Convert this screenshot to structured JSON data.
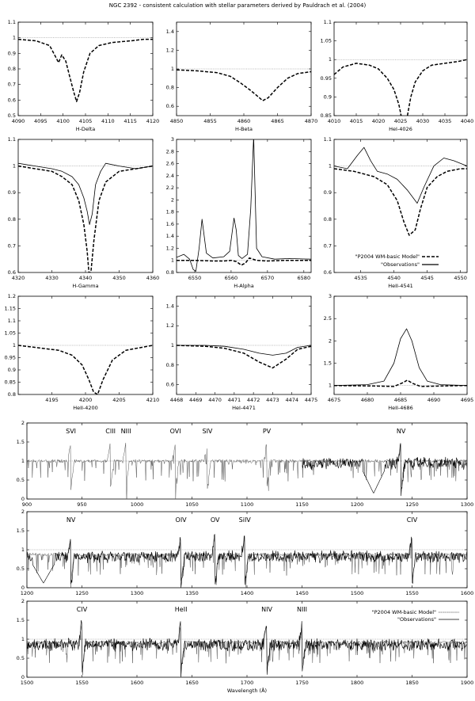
{
  "title": "NGC 2392 - consistent calculation with stellar parameters derived by Pauldrach et al. (2004)",
  "legend_model": "\"P2004 WM-basic Model\"",
  "legend_obs": "\"Observations\"",
  "xlabel_bottom": "Wavelength (Å)",
  "chart_data": [
    {
      "type": "line",
      "xlabel": "H-Delta",
      "xlim": [
        4090,
        4120
      ],
      "ylim": [
        0.5,
        1.1
      ],
      "xticks": [
        4090,
        4095,
        4100,
        4105,
        4110,
        4115,
        4120
      ],
      "yticks": [
        0.5,
        0.6,
        0.7,
        0.8,
        0.9,
        1,
        1.1
      ],
      "series": [
        {
          "name": "\"P2004 WM-basic Model\"",
          "style": "dashed",
          "x": [
            4090,
            4094,
            4097,
            4098.3,
            4099,
            4099.7,
            4100.6,
            4101.4,
            4102.3,
            4103,
            4103.7,
            4104.6,
            4106,
            4108,
            4111,
            4115,
            4118,
            4120
          ],
          "y": [
            0.99,
            0.98,
            0.95,
            0.88,
            0.84,
            0.89,
            0.85,
            0.76,
            0.66,
            0.59,
            0.65,
            0.78,
            0.9,
            0.95,
            0.97,
            0.98,
            0.99,
            0.99
          ]
        }
      ]
    },
    {
      "type": "line",
      "xlabel": "H-Beta",
      "xlim": [
        4850,
        4870
      ],
      "ylim": [
        0.5,
        1.5
      ],
      "xticks": [
        4850,
        4855,
        4860,
        4865,
        4870
      ],
      "yticks": [
        0.6,
        0.8,
        1,
        1.2,
        1.4
      ],
      "series": [
        {
          "name": "\"P2004 WM-basic Model\"",
          "style": "dashed",
          "x": [
            4850,
            4853,
            4856,
            4858,
            4859.5,
            4861,
            4862,
            4862.8,
            4863.6,
            4865,
            4866.5,
            4868,
            4870
          ],
          "y": [
            0.99,
            0.98,
            0.96,
            0.92,
            0.85,
            0.77,
            0.71,
            0.66,
            0.69,
            0.8,
            0.9,
            0.95,
            0.97
          ]
        }
      ]
    },
    {
      "type": "line",
      "xlabel": "HeI-4026",
      "xlim": [
        4010,
        4040
      ],
      "ylim": [
        0.85,
        1.1
      ],
      "xticks": [
        4010,
        4015,
        4020,
        4025,
        4030,
        4035,
        4040
      ],
      "yticks": [
        0.85,
        0.9,
        0.95,
        1,
        1.05,
        1.1
      ],
      "series": [
        {
          "name": "\"P2004 WM-basic Model\"",
          "style": "dashed",
          "x": [
            4010,
            4012,
            4015,
            4018,
            4020,
            4022,
            4023.5,
            4024.6,
            4025.3,
            4026.4,
            4027.3,
            4028.3,
            4030,
            4032,
            4035,
            4038,
            4040
          ],
          "y": [
            0.96,
            0.98,
            0.99,
            0.985,
            0.975,
            0.95,
            0.92,
            0.88,
            0.84,
            0.84,
            0.9,
            0.94,
            0.97,
            0.985,
            0.99,
            0.995,
            1.0
          ]
        }
      ]
    },
    {
      "type": "line",
      "xlabel": "H-Gamma",
      "xlim": [
        4320,
        4360
      ],
      "ylim": [
        0.6,
        1.1
      ],
      "xticks": [
        4320,
        4330,
        4340,
        4350,
        4360
      ],
      "yticks": [
        0.6,
        0.7,
        0.8,
        0.9,
        1,
        1.1
      ],
      "series": [
        {
          "name": "\"P2004 WM-basic Model\"",
          "style": "dashed",
          "x": [
            4320,
            4325,
            4330,
            4333,
            4336,
            4338,
            4339.5,
            4340.5,
            4341,
            4341.6,
            4342.5,
            4344,
            4346,
            4350,
            4355,
            4360
          ],
          "y": [
            1.0,
            0.99,
            0.98,
            0.96,
            0.93,
            0.87,
            0.78,
            0.68,
            0.6,
            0.6,
            0.72,
            0.87,
            0.94,
            0.98,
            0.99,
            1.0
          ]
        },
        {
          "name": "\"Observations\"",
          "style": "solid",
          "x": [
            4320,
            4325,
            4330,
            4333,
            4336,
            4338,
            4339.5,
            4340.5,
            4341.2,
            4342,
            4343,
            4344.5,
            4346,
            4350,
            4355,
            4360
          ],
          "y": [
            1.01,
            1.0,
            0.99,
            0.98,
            0.96,
            0.93,
            0.88,
            0.83,
            0.78,
            0.82,
            0.93,
            0.98,
            1.01,
            1.0,
            0.99,
            1.0
          ]
        }
      ]
    },
    {
      "type": "line",
      "xlabel": "H-Alpha",
      "xlim": [
        6545,
        6582
      ],
      "ylim": [
        0.8,
        3
      ],
      "xticks": [
        6550,
        6560,
        6570,
        6580
      ],
      "yticks": [
        0.8,
        1,
        1.2,
        1.4,
        1.6,
        1.8,
        2,
        2.2,
        2.4,
        2.6,
        2.8,
        3
      ],
      "series": [
        {
          "name": "\"P2004 WM-basic Model\"",
          "style": "dashed",
          "x": [
            6545,
            6550,
            6555,
            6558,
            6560,
            6561.5,
            6562.8,
            6564,
            6565,
            6567,
            6570,
            6575,
            6582
          ],
          "y": [
            1.0,
            1.0,
            0.99,
            0.99,
            1.0,
            0.98,
            0.92,
            0.96,
            1.04,
            1.0,
            0.99,
            1.0,
            1.0
          ]
        },
        {
          "name": "\"Observations\"",
          "style": "solid",
          "x": [
            6545,
            6547,
            6548.6,
            6549.6,
            6550.3,
            6551.2,
            6552,
            6553.2,
            6555,
            6558,
            6559.6,
            6560.8,
            6561.4,
            6562,
            6563,
            6564.5,
            6565.4,
            6566.2,
            6567,
            6568.5,
            6572,
            6576,
            6582
          ],
          "y": [
            1.05,
            1.1,
            1.02,
            0.85,
            0.82,
            1.2,
            1.68,
            1.12,
            1.04,
            1.06,
            1.15,
            1.7,
            1.5,
            1.08,
            1.03,
            1.1,
            1.85,
            3.05,
            1.2,
            1.06,
            1.02,
            1.03,
            1.02
          ]
        }
      ]
    },
    {
      "type": "line",
      "xlabel": "HeII-4541",
      "xlim": [
        4531,
        4551
      ],
      "ylim": [
        0.6,
        1.1
      ],
      "xticks": [
        4535,
        4540,
        4545,
        4550
      ],
      "yticks": [
        0.6,
        0.7,
        0.8,
        0.9,
        1,
        1.1
      ],
      "series": [
        {
          "name": "\"P2004 WM-basic Model\"",
          "style": "dashed",
          "x": [
            4531,
            4534,
            4537,
            4539,
            4540.5,
            4541.5,
            4542.3,
            4543.2,
            4544,
            4545,
            4546.5,
            4548,
            4550,
            4551
          ],
          "y": [
            0.99,
            0.98,
            0.96,
            0.93,
            0.87,
            0.79,
            0.74,
            0.76,
            0.84,
            0.92,
            0.96,
            0.98,
            0.99,
            0.99
          ]
        },
        {
          "name": "\"Observations\"",
          "style": "solid",
          "x": [
            4531,
            4533,
            4534.5,
            4535.5,
            4536.5,
            4537.5,
            4539,
            4540.5,
            4542,
            4543.5,
            4544.5,
            4546,
            4547.5,
            4549,
            4550,
            4551
          ],
          "y": [
            1.0,
            0.99,
            1.04,
            1.07,
            1.02,
            0.98,
            0.97,
            0.95,
            0.91,
            0.86,
            0.92,
            1.0,
            1.03,
            1.02,
            1.01,
            1.0
          ]
        }
      ]
    },
    {
      "type": "line",
      "xlabel": "HeII-4200",
      "xlim": [
        4190,
        4210
      ],
      "ylim": [
        0.8,
        1.2
      ],
      "xticks": [
        4195,
        4200,
        4205,
        4210
      ],
      "yticks": [
        0.8,
        0.85,
        0.9,
        0.95,
        1,
        1.05,
        1.1,
        1.15,
        1.2
      ],
      "series": [
        {
          "name": "\"P2004 WM-basic Model\"",
          "style": "dashed",
          "x": [
            4190,
            4193,
            4196,
            4198,
            4199.5,
            4200.5,
            4201.2,
            4201.8,
            4202.6,
            4204,
            4206,
            4208,
            4210
          ],
          "y": [
            1.0,
            0.99,
            0.98,
            0.96,
            0.92,
            0.86,
            0.81,
            0.8,
            0.86,
            0.94,
            0.98,
            0.99,
            1.0
          ]
        }
      ]
    },
    {
      "type": "line",
      "xlabel": "HeI-4471",
      "xlim": [
        4468,
        4475
      ],
      "ylim": [
        0.5,
        1.5
      ],
      "xticks": [
        4468,
        4469,
        4470,
        4471,
        4472,
        4473,
        4474,
        4475
      ],
      "yticks": [
        0.6,
        0.8,
        1,
        1.2,
        1.4
      ],
      "series": [
        {
          "name": "\"P2004 WM-basic Model\"",
          "style": "dashed",
          "x": [
            4468,
            4469.5,
            4470.5,
            4471.5,
            4472.3,
            4473,
            4473.7,
            4474.3,
            4475
          ],
          "y": [
            1.0,
            0.99,
            0.97,
            0.92,
            0.83,
            0.77,
            0.86,
            0.96,
            0.99
          ]
        },
        {
          "name": "\"Observations\"",
          "style": "solid",
          "x": [
            4468,
            4469.5,
            4470.5,
            4471.5,
            4472.3,
            4473,
            4473.7,
            4474.3,
            4475
          ],
          "y": [
            1.0,
            1.0,
            0.99,
            0.96,
            0.92,
            0.9,
            0.92,
            0.98,
            1.0
          ]
        }
      ]
    },
    {
      "type": "line",
      "xlabel": "HeII-4686",
      "xlim": [
        4675,
        4695
      ],
      "ylim": [
        0.8,
        3
      ],
      "xticks": [
        4675,
        4680,
        4685,
        4690,
        4695
      ],
      "yticks": [
        1,
        1.5,
        2,
        2.5,
        3
      ],
      "series": [
        {
          "name": "\"P2004 WM-basic Model\"",
          "style": "dashed",
          "x": [
            4675,
            4681,
            4684,
            4685.3,
            4686,
            4686.8,
            4688,
            4691,
            4695
          ],
          "y": [
            1.0,
            0.99,
            0.98,
            1.06,
            1.12,
            1.05,
            0.98,
            0.99,
            1.0
          ]
        },
        {
          "name": "\"Observations\"",
          "style": "solid",
          "x": [
            4675,
            4680,
            4682.5,
            4684,
            4685,
            4685.9,
            4686.7,
            4687.8,
            4689,
            4691,
            4695
          ],
          "y": [
            1.0,
            1.02,
            1.1,
            1.5,
            2.05,
            2.27,
            2.0,
            1.4,
            1.1,
            1.02,
            1.0
          ]
        }
      ]
    },
    {
      "type": "line",
      "xlabel": "",
      "xlim": [
        900,
        1300
      ],
      "ylim": [
        0,
        2
      ],
      "xticks": [
        900,
        950,
        1000,
        1050,
        1100,
        1150,
        1200,
        1250,
        1300
      ],
      "yticks": [
        0,
        0.5,
        1,
        1.5,
        2
      ],
      "annotations": [
        {
          "text": "SVI",
          "x": 940
        },
        {
          "text": "CIII",
          "x": 976
        },
        {
          "text": "NIII",
          "x": 990
        },
        {
          "text": "OVI",
          "x": 1035
        },
        {
          "text": "SIV",
          "x": 1064
        },
        {
          "text": "PV",
          "x": 1118
        },
        {
          "text": "NV",
          "x": 1240
        }
      ],
      "continuum": 1.0,
      "obs_start": 1150,
      "seed": 11
    },
    {
      "type": "line",
      "xlabel": "",
      "xlim": [
        1200,
        1600
      ],
      "ylim": [
        0,
        2
      ],
      "xticks": [
        1200,
        1250,
        1300,
        1350,
        1400,
        1450,
        1500,
        1550,
        1600
      ],
      "yticks": [
        0,
        0.5,
        1,
        1.5,
        2
      ],
      "annotations": [
        {
          "text": "NV",
          "x": 1240
        },
        {
          "text": "OIV",
          "x": 1340
        },
        {
          "text": "OV",
          "x": 1371
        },
        {
          "text": "SiIV",
          "x": 1398
        },
        {
          "text": "CIV",
          "x": 1550
        }
      ],
      "continuum": 0.88,
      "obs_start": 1200,
      "seed": 23
    },
    {
      "type": "line",
      "xlabel": "Wavelength (Å)",
      "xlim": [
        1500,
        1900
      ],
      "ylim": [
        0,
        2
      ],
      "xticks": [
        1500,
        1550,
        1600,
        1650,
        1700,
        1750,
        1800,
        1850,
        1900
      ],
      "yticks": [
        0,
        0.5,
        1,
        1.5,
        2
      ],
      "annotations": [
        {
          "text": "CIV",
          "x": 1550
        },
        {
          "text": "HeII",
          "x": 1640
        },
        {
          "text": "NIV",
          "x": 1718
        },
        {
          "text": "NIII",
          "x": 1750
        }
      ],
      "continuum": 0.92,
      "obs_start": 1500,
      "seed": 37
    }
  ]
}
